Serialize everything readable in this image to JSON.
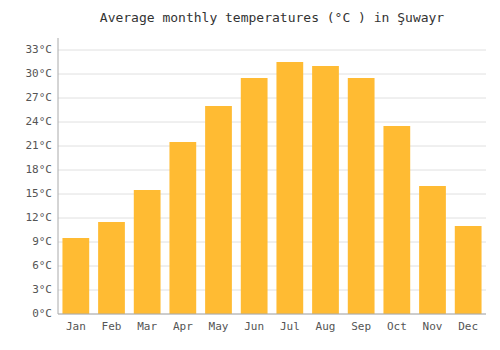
{
  "chart_data": {
    "type": "bar",
    "title": "Average monthly temperatures (°C ) in Şuwayr",
    "categories": [
      "Jan",
      "Feb",
      "Mar",
      "Apr",
      "May",
      "Jun",
      "Jul",
      "Aug",
      "Sep",
      "Oct",
      "Nov",
      "Dec"
    ],
    "values": [
      9.5,
      11.5,
      15.5,
      21.5,
      26.0,
      29.5,
      31.5,
      31.0,
      29.5,
      23.5,
      16.0,
      11.0
    ],
    "color": "#FFBB33",
    "ylim": [
      0,
      34.5
    ],
    "yticks": [
      {
        "value": 0,
        "label": "0°C"
      },
      {
        "value": 3,
        "label": "3°C"
      },
      {
        "value": 6,
        "label": "6°C"
      },
      {
        "value": 9,
        "label": "9°C"
      },
      {
        "value": 12,
        "label": "12°C"
      },
      {
        "value": 15,
        "label": "15°C"
      },
      {
        "value": 18,
        "label": "18°C"
      },
      {
        "value": 21,
        "label": "21°C"
      },
      {
        "value": 24,
        "label": "24°C"
      },
      {
        "value": 27,
        "label": "27°C"
      },
      {
        "value": 30,
        "label": "30°C"
      },
      {
        "value": 33,
        "label": "33°C"
      }
    ],
    "grid": true
  }
}
